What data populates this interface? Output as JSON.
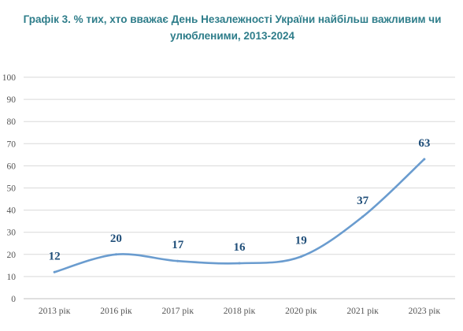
{
  "chart_data": {
    "type": "line",
    "title": "Графік 3.  % тих, хто вважає День Незалежності України найбільш важливим чи улюбленими, 2013-2024",
    "categories": [
      "2013 рік",
      "2016 рік",
      "2017 рік",
      "2018 рік",
      "2020 рік",
      "2021 рік",
      "2023 рік"
    ],
    "values": [
      12,
      20,
      17,
      16,
      19,
      37,
      63
    ],
    "ylim": [
      0,
      100
    ],
    "yticks": [
      "0",
      "10",
      "20",
      "30",
      "40",
      "50",
      "60",
      "70",
      "80",
      "90",
      "100"
    ],
    "grid": true,
    "legend": "none",
    "colors": {
      "line": "#6a9ccf",
      "grid": "#d9d9d9",
      "labels": "#1f4e79",
      "title": "#2e7d8a"
    }
  }
}
